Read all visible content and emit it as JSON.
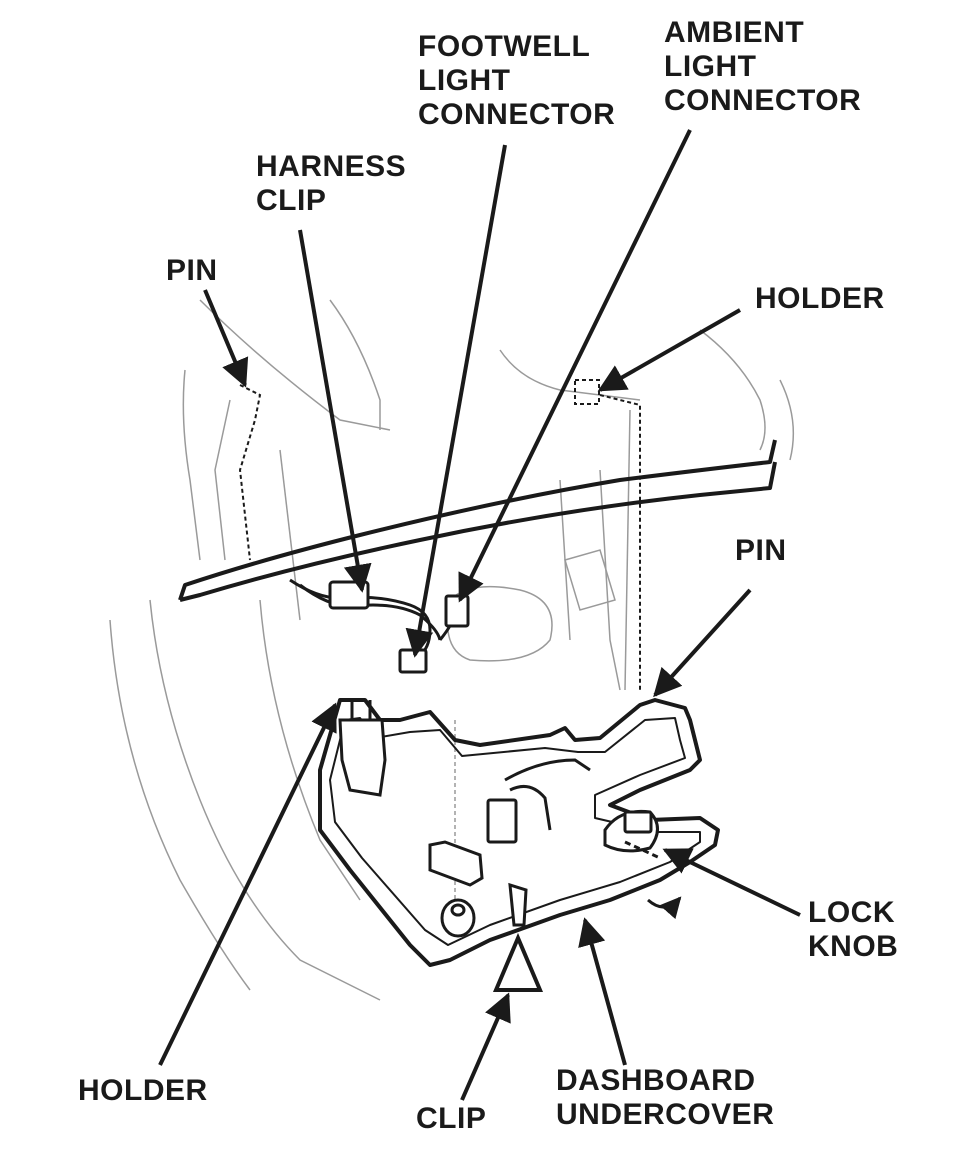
{
  "callouts": {
    "footwell_light_connector": [
      "FOOTWELL",
      "LIGHT",
      "CONNECTOR"
    ],
    "ambient_light_connector": [
      "AMBIENT",
      "LIGHT",
      "CONNECTOR"
    ],
    "harness_clip": [
      "HARNESS",
      "CLIP"
    ],
    "pin_upper_left": "PIN",
    "holder_upper_right": "HOLDER",
    "pin_right": "PIN",
    "lock_knob": [
      "LOCK",
      "KNOB"
    ],
    "holder_lower_left": "HOLDER",
    "clip_bottom": "CLIP",
    "dashboard_undercover": [
      "DASHBOARD",
      "UNDERCOVER"
    ]
  },
  "colors": {
    "ink": "#1a1a1a",
    "faint_line": "#9a9a9a",
    "background": "#ffffff"
  }
}
